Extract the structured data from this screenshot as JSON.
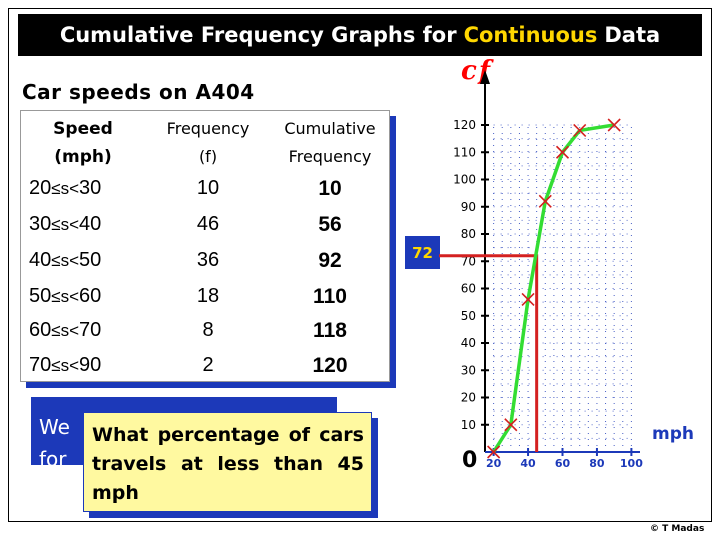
{
  "title": {
    "main": "Cumulative Frequency Graphs for",
    "highlight": "Continuous",
    "end": "Data"
  },
  "subtitle": "Car speeds on A404",
  "table": {
    "headers": {
      "speed_1": "Speed",
      "speed_2": "(mph)",
      "freq_1": "Frequency",
      "freq_2": "(f)",
      "cum_1": "Cumulative",
      "cum_2": "Frequency"
    },
    "rows": [
      {
        "lo": "20",
        "hi": "30",
        "f": "10",
        "cf": "10"
      },
      {
        "lo": "30",
        "hi": "40",
        "f": "46",
        "cf": "56"
      },
      {
        "lo": "40",
        "hi": "50",
        "f": "36",
        "cf": "92"
      },
      {
        "lo": "50",
        "hi": "60",
        "f": "18",
        "cf": "110"
      },
      {
        "lo": "60",
        "hi": "70",
        "f": "8",
        "cf": "118"
      },
      {
        "lo": "70",
        "hi": "90",
        "f": "2",
        "cf": "120"
      }
    ],
    "inequality": "≤s<"
  },
  "hidden_text": {
    "line1": "We",
    "line2": "for"
  },
  "question": "What percentage of cars travels at less than 45 mph",
  "marker_label": "72",
  "colors": {
    "accent_blue": "#1c39b9",
    "curve": "#33dd33",
    "marker": "#d42020",
    "grid": "#1c39b9",
    "highlight": "#ffd700"
  },
  "credit": "© T Madas",
  "chart_data": {
    "type": "line",
    "ylabel": "cf",
    "xlabel": "mph",
    "origin_label": "0",
    "x_ticks": [
      20,
      40,
      60,
      80,
      100
    ],
    "y_ticks": [
      10,
      20,
      30,
      40,
      50,
      60,
      70,
      80,
      90,
      100,
      110,
      120
    ],
    "xlim": [
      15,
      105
    ],
    "ylim": [
      0,
      120
    ],
    "points": [
      {
        "x": 20,
        "y": 0
      },
      {
        "x": 30,
        "y": 10
      },
      {
        "x": 40,
        "y": 56
      },
      {
        "x": 50,
        "y": 92
      },
      {
        "x": 60,
        "y": 110
      },
      {
        "x": 70,
        "y": 118
      },
      {
        "x": 90,
        "y": 120
      }
    ],
    "reading": {
      "x": 45,
      "y": 72
    }
  }
}
